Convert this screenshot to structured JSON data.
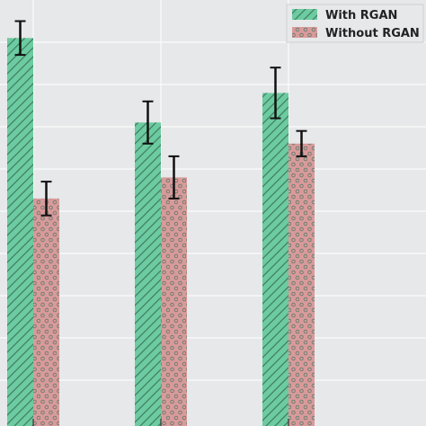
{
  "chart_data": {
    "type": "bar",
    "title": "",
    "xlabel": "",
    "ylabel": "",
    "categories": [
      "",
      "",
      ""
    ],
    "ylim": [
      0,
      100
    ],
    "grid": true,
    "legend_position": "top-right",
    "series": [
      {
        "name": "With RGAN",
        "values": [
          91,
          71,
          78
        ],
        "errors": [
          4,
          5,
          6
        ],
        "color": "#6ccba0",
        "hatch": "diagonal"
      },
      {
        "name": "Without RGAN",
        "values": [
          53,
          58,
          66
        ],
        "errors": [
          4,
          5,
          3
        ],
        "color": "#d99a9a",
        "hatch": "circles"
      }
    ]
  },
  "colors": {
    "background": "#e7e8ea",
    "grid": "#ffffff",
    "errorbar": "#111111"
  }
}
